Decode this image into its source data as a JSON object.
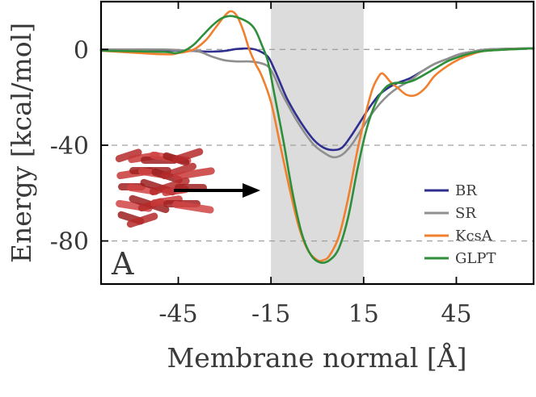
{
  "chart_data": {
    "type": "line",
    "xlabel": "Membrane normal [Å]",
    "ylabel": "Energy [kcal/mol]",
    "panel_label": "A",
    "xlim": [
      -70,
      70
    ],
    "ylim": [
      -98,
      20
    ],
    "x_ticks": [
      -45,
      -15,
      15,
      45
    ],
    "x_tick_labels": [
      "-45",
      "-15",
      "15",
      "45"
    ],
    "y_ticks": [
      0,
      -40,
      -80
    ],
    "y_tick_labels": [
      "0",
      "-40",
      "-80"
    ],
    "y_gridlines": [
      0,
      -40,
      -80
    ],
    "shaded_region": [
      -15,
      15
    ],
    "legend_position": "bottom-right",
    "series": [
      {
        "name": "BR",
        "color": "#2f2f8f",
        "points": [
          [
            -70,
            0
          ],
          [
            -50,
            -0.3
          ],
          [
            -42,
            -0.5
          ],
          [
            -38,
            -0.8
          ],
          [
            -34,
            -0.9
          ],
          [
            -30,
            -0.6
          ],
          [
            -26,
            0.2
          ],
          [
            -22,
            0.4
          ],
          [
            -19,
            -0.5
          ],
          [
            -16,
            -3
          ],
          [
            -14,
            -8
          ],
          [
            -12,
            -14
          ],
          [
            -10,
            -20
          ],
          [
            -7,
            -27
          ],
          [
            -4,
            -33
          ],
          [
            -1,
            -38
          ],
          [
            2,
            -41
          ],
          [
            5,
            -42
          ],
          [
            8,
            -41
          ],
          [
            11,
            -36
          ],
          [
            14,
            -30
          ],
          [
            17,
            -24
          ],
          [
            20,
            -19
          ],
          [
            23,
            -16
          ],
          [
            26,
            -14
          ],
          [
            30,
            -12
          ],
          [
            34,
            -9
          ],
          [
            38,
            -6
          ],
          [
            42,
            -4
          ],
          [
            46,
            -2
          ],
          [
            50,
            -1
          ],
          [
            55,
            0
          ],
          [
            70,
            0.5
          ]
        ]
      },
      {
        "name": "SR",
        "color": "#8f8f8f",
        "points": [
          [
            -70,
            0
          ],
          [
            -50,
            0
          ],
          [
            -42,
            -0.5
          ],
          [
            -38,
            -1
          ],
          [
            -34,
            -3
          ],
          [
            -30,
            -4.5
          ],
          [
            -26,
            -5
          ],
          [
            -22,
            -5
          ],
          [
            -19,
            -5.5
          ],
          [
            -16,
            -7
          ],
          [
            -14,
            -11
          ],
          [
            -12,
            -17
          ],
          [
            -10,
            -22
          ],
          [
            -7,
            -29
          ],
          [
            -4,
            -35
          ],
          [
            -1,
            -40
          ],
          [
            2,
            -43
          ],
          [
            5,
            -45
          ],
          [
            8,
            -44
          ],
          [
            11,
            -40
          ],
          [
            14,
            -34
          ],
          [
            17,
            -28
          ],
          [
            20,
            -23
          ],
          [
            23,
            -19
          ],
          [
            26,
            -16
          ],
          [
            30,
            -13
          ],
          [
            34,
            -9
          ],
          [
            38,
            -6
          ],
          [
            42,
            -4
          ],
          [
            46,
            -2
          ],
          [
            50,
            -1
          ],
          [
            55,
            0
          ],
          [
            70,
            0.5
          ]
        ]
      },
      {
        "name": "KcsA",
        "color": "#f07f2e",
        "points": [
          [
            -70,
            -0.5
          ],
          [
            -50,
            -2
          ],
          [
            -45,
            -1.5
          ],
          [
            -40,
            0
          ],
          [
            -36,
            4
          ],
          [
            -33,
            9
          ],
          [
            -30,
            14
          ],
          [
            -28,
            16
          ],
          [
            -26,
            14
          ],
          [
            -24,
            8
          ],
          [
            -22,
            0
          ],
          [
            -20,
            -6
          ],
          [
            -18,
            -11
          ],
          [
            -15,
            -22
          ],
          [
            -12,
            -40
          ],
          [
            -9,
            -58
          ],
          [
            -6,
            -74
          ],
          [
            -3,
            -84
          ],
          [
            0,
            -88
          ],
          [
            2,
            -88
          ],
          [
            4,
            -86
          ],
          [
            7,
            -78
          ],
          [
            10,
            -62
          ],
          [
            13,
            -42
          ],
          [
            16,
            -25
          ],
          [
            18,
            -16
          ],
          [
            20,
            -11
          ],
          [
            21,
            -10
          ],
          [
            22,
            -11
          ],
          [
            24,
            -14
          ],
          [
            26,
            -16
          ],
          [
            29,
            -19
          ],
          [
            32,
            -19
          ],
          [
            35,
            -16
          ],
          [
            38,
            -11
          ],
          [
            42,
            -7
          ],
          [
            46,
            -4
          ],
          [
            50,
            -2
          ],
          [
            55,
            -0.5
          ],
          [
            70,
            0.5
          ]
        ]
      },
      {
        "name": "GLPT",
        "color": "#2e8f3a",
        "points": [
          [
            -70,
            -0.5
          ],
          [
            -50,
            -1
          ],
          [
            -46,
            -1.5
          ],
          [
            -43,
            -0.5
          ],
          [
            -40,
            2
          ],
          [
            -37,
            6
          ],
          [
            -34,
            10
          ],
          [
            -31,
            13
          ],
          [
            -28,
            14
          ],
          [
            -25,
            13
          ],
          [
            -22,
            11
          ],
          [
            -20,
            8
          ],
          [
            -18,
            2
          ],
          [
            -16,
            -5
          ],
          [
            -14,
            -18
          ],
          [
            -11,
            -38
          ],
          [
            -8,
            -60
          ],
          [
            -5,
            -77
          ],
          [
            -2,
            -86
          ],
          [
            1,
            -89
          ],
          [
            4,
            -88
          ],
          [
            7,
            -83
          ],
          [
            10,
            -70
          ],
          [
            13,
            -50
          ],
          [
            16,
            -33
          ],
          [
            19,
            -22
          ],
          [
            22,
            -16
          ],
          [
            25,
            -14
          ],
          [
            28,
            -14
          ],
          [
            31,
            -13
          ],
          [
            34,
            -11
          ],
          [
            38,
            -8
          ],
          [
            42,
            -5
          ],
          [
            46,
            -3
          ],
          [
            50,
            -1.5
          ],
          [
            55,
            -0.5
          ],
          [
            70,
            0.5
          ]
        ]
      }
    ]
  }
}
